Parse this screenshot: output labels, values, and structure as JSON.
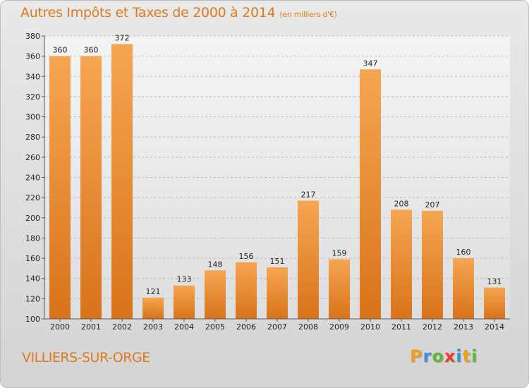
{
  "header": {
    "title": "Autres Impôts et Taxes de 2000 à 2014",
    "unit": "(en milliers d'€)"
  },
  "footer": {
    "city": "VILLIERS-SUR-ORGE",
    "logo_letters": [
      "P",
      "r",
      "o",
      "x",
      "i",
      "t",
      "i"
    ],
    "logo_colors": [
      "#f0a020",
      "#3a8fd8",
      "#5fb83a",
      "#e8402a",
      "#3a8fd8",
      "#f0a020",
      "#5fb83a"
    ]
  },
  "colors": {
    "accent": "#e07a1e",
    "bar_light": "#f6a552",
    "bar_dark": "#d8731a",
    "grid": "#bcbcbc",
    "axis": "#555555"
  },
  "chart_data": {
    "type": "bar",
    "title": "Autres Impôts et Taxes de 2000 à 2014",
    "xlabel": "",
    "ylabel": "",
    "categories": [
      "2000",
      "2001",
      "2002",
      "2003",
      "2004",
      "2005",
      "2006",
      "2007",
      "2008",
      "2009",
      "2010",
      "2011",
      "2012",
      "2013",
      "2014"
    ],
    "values": [
      360,
      360,
      372,
      121,
      133,
      148,
      156,
      151,
      217,
      159,
      347,
      208,
      207,
      160,
      131
    ],
    "ylim": [
      100,
      380
    ],
    "yticks": [
      100,
      120,
      140,
      160,
      180,
      200,
      220,
      240,
      260,
      280,
      300,
      320,
      340,
      360,
      380
    ],
    "grid": true,
    "legend": "none"
  }
}
